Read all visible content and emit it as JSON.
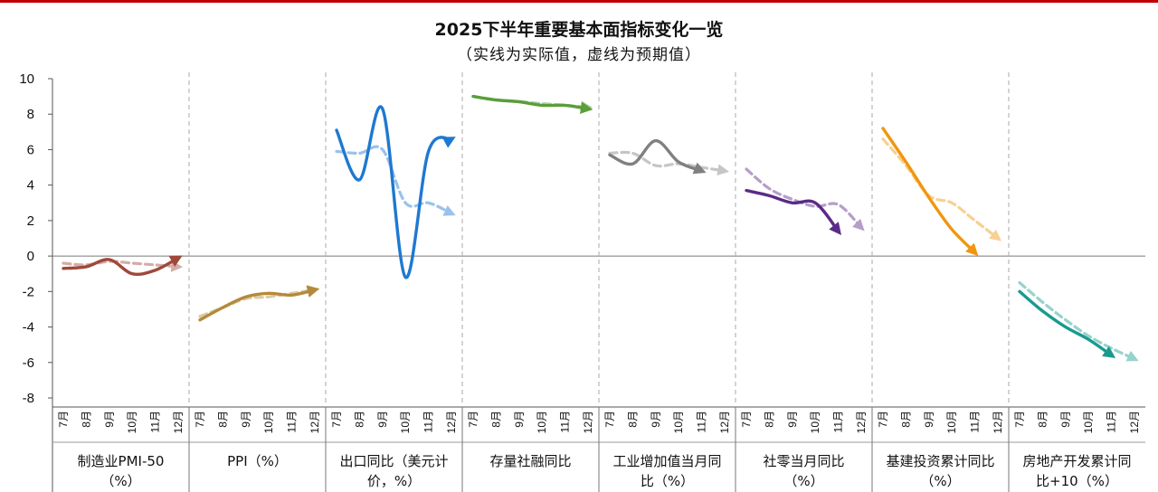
{
  "chart_data": {
    "type": "line",
    "title": "2025下半年重要基本面指标变化一览",
    "subtitle": "（实线为实际值，虚线为预期值）",
    "ylim": [
      -8,
      10
    ],
    "yticks": [
      10,
      8,
      6,
      4,
      2,
      0,
      -2,
      -4,
      -6,
      -8
    ],
    "months": [
      "7月",
      "8月",
      "9月",
      "10月",
      "11月",
      "12月"
    ],
    "panels": [
      {
        "label_lines": [
          "制造业PMI-50",
          "（%）"
        ],
        "color": "#a0483a",
        "actual": [
          [
            0,
            -0.7
          ],
          [
            1,
            -0.6
          ],
          [
            2,
            -0.2
          ],
          [
            3,
            -1.0
          ],
          [
            4,
            -0.8
          ],
          [
            5,
            -0.1
          ]
        ],
        "expected": [
          [
            0,
            -0.4
          ],
          [
            1,
            -0.5
          ],
          [
            2,
            -0.3
          ],
          [
            3,
            -0.4
          ],
          [
            4,
            -0.5
          ],
          [
            5,
            -0.6
          ]
        ]
      },
      {
        "label_lines": [
          "PPI（%）"
        ],
        "color": "#b48a3a",
        "actual": [
          [
            0,
            -3.6
          ],
          [
            1,
            -2.9
          ],
          [
            2,
            -2.3
          ],
          [
            3,
            -2.1
          ],
          [
            4,
            -2.2
          ],
          [
            5,
            -1.9
          ]
        ],
        "expected": [
          [
            0,
            -3.4
          ],
          [
            1,
            -2.9
          ],
          [
            2,
            -2.4
          ],
          [
            3,
            -2.3
          ],
          [
            4,
            -2.1
          ],
          [
            5,
            -1.9
          ]
        ]
      },
      {
        "label_lines": [
          "出口同比（美元计",
          "价，%）"
        ],
        "color": "#1f78d1",
        "actual": [
          [
            0,
            7.1
          ],
          [
            1,
            4.3
          ],
          [
            2,
            8.3
          ],
          [
            3,
            -1.2
          ],
          [
            4,
            5.9
          ],
          [
            5,
            6.6
          ]
        ],
        "expected": [
          [
            0,
            5.9
          ],
          [
            1,
            5.8
          ],
          [
            2,
            6.0
          ],
          [
            3,
            3.0
          ],
          [
            4,
            3.0
          ],
          [
            5,
            2.4
          ]
        ]
      },
      {
        "label_lines": [
          "存量社融同比"
        ],
        "color": "#5a9e3a",
        "actual": [
          [
            0,
            9.0
          ],
          [
            1,
            8.8
          ],
          [
            2,
            8.7
          ],
          [
            3,
            8.5
          ],
          [
            4,
            8.5
          ],
          [
            5,
            8.3
          ]
        ],
        "expected": [
          [
            0,
            9.0
          ],
          [
            1,
            8.8
          ],
          [
            2,
            8.7
          ],
          [
            3,
            8.6
          ],
          [
            4,
            8.5
          ],
          [
            5,
            8.4
          ]
        ]
      },
      {
        "label_lines": [
          "工业增加值当月同",
          "比（%）"
        ],
        "color": "#808080",
        "actual": [
          [
            0,
            5.7
          ],
          [
            1,
            5.2
          ],
          [
            2,
            6.5
          ],
          [
            3,
            5.3
          ],
          [
            4,
            4.8
          ]
        ],
        "expected": [
          [
            0,
            5.8
          ],
          [
            1,
            5.8
          ],
          [
            2,
            5.1
          ],
          [
            3,
            5.2
          ],
          [
            4,
            5.0
          ],
          [
            5,
            4.8
          ]
        ]
      },
      {
        "label_lines": [
          "社零当月同比",
          "（%）"
        ],
        "color": "#5b2a86",
        "actual": [
          [
            0,
            3.7
          ],
          [
            1,
            3.4
          ],
          [
            2,
            3.0
          ],
          [
            3,
            3.0
          ],
          [
            4,
            1.4
          ]
        ],
        "expected": [
          [
            0,
            4.9
          ],
          [
            1,
            3.8
          ],
          [
            2,
            3.2
          ],
          [
            3,
            2.8
          ],
          [
            4,
            2.9
          ],
          [
            5,
            1.6
          ]
        ]
      },
      {
        "label_lines": [
          "基建投资累计同比",
          "（%）"
        ],
        "color": "#f0960f",
        "actual": [
          [
            0,
            7.2
          ],
          [
            1,
            5.3
          ],
          [
            2,
            3.3
          ],
          [
            3,
            1.5
          ],
          [
            4,
            0.2
          ]
        ],
        "expected": [
          [
            0,
            6.6
          ],
          [
            1,
            5.1
          ],
          [
            2,
            3.4
          ],
          [
            3,
            3.0
          ],
          [
            4,
            2.0
          ],
          [
            5,
            1.0
          ]
        ]
      },
      {
        "label_lines": [
          "房地产开发累计同",
          "比+10（%）"
        ],
        "color": "#1a9a8e",
        "actual": [
          [
            0,
            -2.0
          ],
          [
            1,
            -3.1
          ],
          [
            2,
            -4.0
          ],
          [
            3,
            -4.7
          ],
          [
            4,
            -5.6
          ]
        ],
        "expected": [
          [
            0,
            -1.5
          ],
          [
            1,
            -2.6
          ],
          [
            2,
            -3.6
          ],
          [
            3,
            -4.5
          ],
          [
            4,
            -5.2
          ],
          [
            5,
            -5.8
          ]
        ]
      }
    ]
  }
}
